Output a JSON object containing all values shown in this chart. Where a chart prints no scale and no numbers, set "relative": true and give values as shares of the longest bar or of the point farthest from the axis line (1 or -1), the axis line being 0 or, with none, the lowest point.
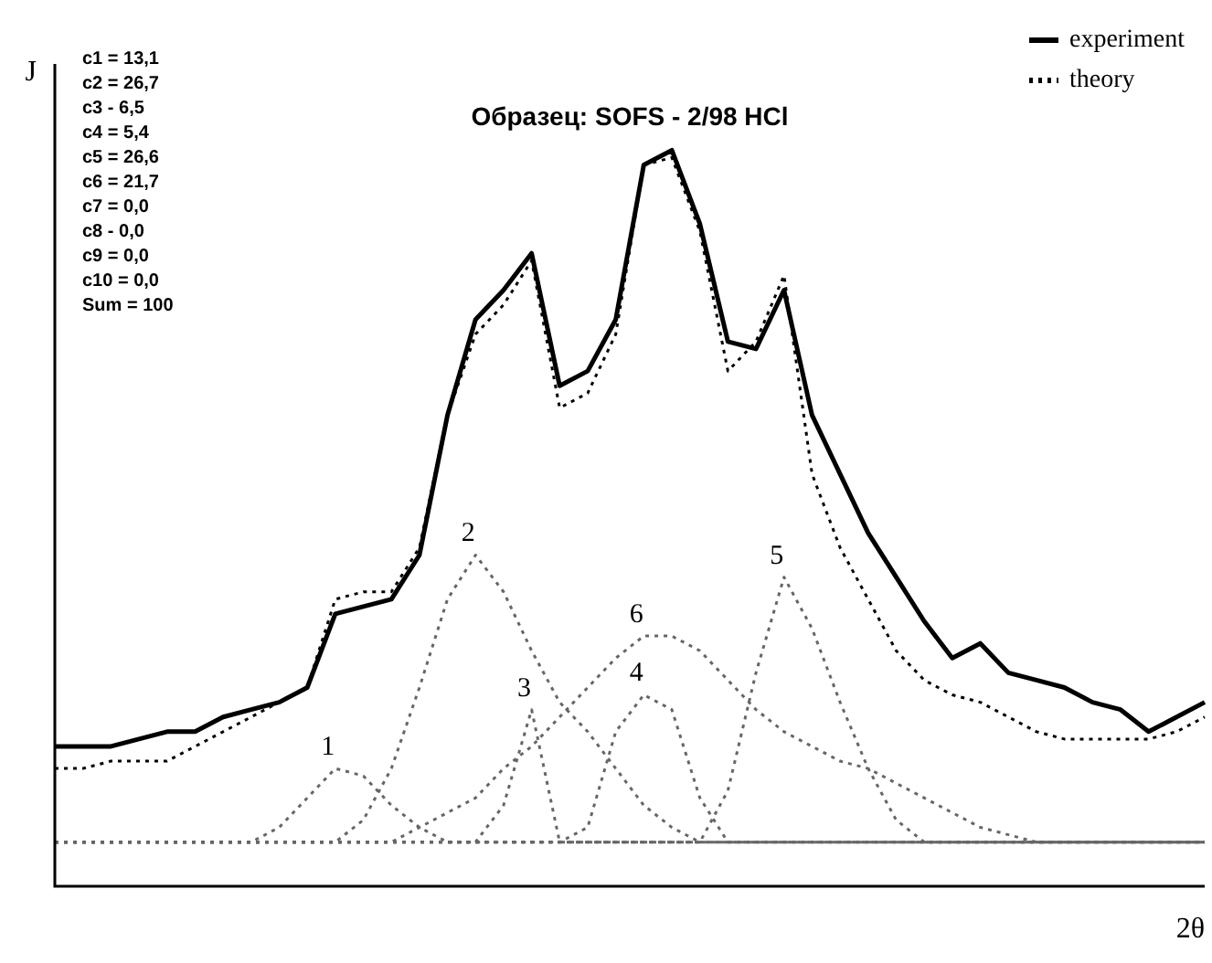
{
  "chart_data": {
    "type": "line",
    "title": "Образец: SOFS - 2/98 HCl",
    "xlabel": "2θ",
    "ylabel": "J",
    "relative": true,
    "grid": false,
    "legend": "top right",
    "marker": "none",
    "annotations": [
      "c1 = 13,1",
      "c2 = 26,7",
      "c3 - 6,5",
      "c4 = 5,4",
      "c5 = 26,6",
      "c6 = 21,7",
      "c7 = 0,0",
      "c8 - 0,0",
      "c9 = 0,0",
      "c10 = 0,0",
      "Sum = 100"
    ],
    "categories": [
      null,
      null,
      null,
      null,
      null,
      null,
      null,
      null,
      null,
      null,
      null,
      null,
      null,
      null,
      null,
      null,
      null,
      null,
      null,
      null,
      null,
      null,
      null,
      null,
      null,
      null,
      null,
      null,
      null,
      null,
      null,
      null,
      null,
      null,
      null,
      null,
      null,
      null,
      null,
      null,
      null,
      null
    ],
    "series": [
      {
        "name": "experiment",
        "color": "#000000",
        "line_style": "solid",
        "values": [
          0.19,
          0.19,
          0.19,
          0.2,
          0.21,
          0.21,
          0.23,
          0.24,
          0.25,
          0.27,
          0.37,
          0.38,
          0.39,
          0.45,
          0.64,
          0.77,
          0.81,
          0.86,
          0.68,
          0.7,
          0.77,
          0.98,
          1.0,
          0.9,
          0.74,
          0.73,
          0.81,
          0.64,
          0.56,
          0.48,
          0.42,
          0.36,
          0.31,
          0.33,
          0.29,
          0.28,
          0.27,
          0.25,
          0.24,
          0.21,
          0.23,
          0.25
        ]
      },
      {
        "name": "theory",
        "color": "#000000",
        "line_style": "dotted",
        "values": [
          0.16,
          0.16,
          0.17,
          0.17,
          0.17,
          0.19,
          0.21,
          0.23,
          0.25,
          0.27,
          0.39,
          0.4,
          0.4,
          0.46,
          0.64,
          0.75,
          0.79,
          0.85,
          0.65,
          0.67,
          0.75,
          0.98,
          0.99,
          0.89,
          0.7,
          0.74,
          0.83,
          0.56,
          0.46,
          0.39,
          0.32,
          0.28,
          0.26,
          0.25,
          0.23,
          0.21,
          0.2,
          0.2,
          0.2,
          0.2,
          0.21,
          0.23
        ]
      },
      {
        "name": "1",
        "color": "#666666",
        "line_style": "dotted",
        "values": [
          0.06,
          0.06,
          0.06,
          0.06,
          0.06,
          0.06,
          0.06,
          0.06,
          0.08,
          0.12,
          0.16,
          0.15,
          0.11,
          0.08,
          0.06,
          0.06,
          0.06,
          0.06,
          0.06,
          0.06,
          0.06,
          0.06,
          0.06,
          0.06,
          0.06,
          0.06,
          0.06,
          0.06,
          0.06,
          0.06,
          0.06,
          0.06,
          0.06,
          0.06,
          0.06,
          0.06,
          0.06,
          0.06,
          0.06,
          0.06,
          0.06,
          0.06
        ]
      },
      {
        "name": "2",
        "color": "#666666",
        "line_style": "dotted",
        "values": [
          0.06,
          0.06,
          0.06,
          0.06,
          0.06,
          0.06,
          0.06,
          0.06,
          0.06,
          0.06,
          0.06,
          0.09,
          0.16,
          0.27,
          0.39,
          0.45,
          0.4,
          0.32,
          0.25,
          0.21,
          0.16,
          0.11,
          0.08,
          0.06,
          0.06,
          0.06,
          0.06,
          0.06,
          0.06,
          0.06,
          0.06,
          0.06,
          0.06,
          0.06,
          0.06,
          0.06,
          0.06,
          0.06,
          0.06,
          0.06,
          0.06,
          0.06
        ]
      },
      {
        "name": "3",
        "color": "#666666",
        "line_style": "dotted",
        "values": [
          0.06,
          0.06,
          0.06,
          0.06,
          0.06,
          0.06,
          0.06,
          0.06,
          0.06,
          0.06,
          0.06,
          0.06,
          0.06,
          0.06,
          0.06,
          0.06,
          0.11,
          0.24,
          0.06,
          0.06,
          0.06,
          0.06,
          0.06,
          0.06,
          0.06,
          0.06,
          0.06,
          0.06,
          0.06,
          0.06,
          0.06,
          0.06,
          0.06,
          0.06,
          0.06,
          0.06,
          0.06,
          0.06,
          0.06,
          0.06,
          0.06,
          0.06
        ]
      },
      {
        "name": "4",
        "color": "#666666",
        "line_style": "dotted",
        "values": [
          0.06,
          0.06,
          0.06,
          0.06,
          0.06,
          0.06,
          0.06,
          0.06,
          0.06,
          0.06,
          0.06,
          0.06,
          0.06,
          0.06,
          0.06,
          0.06,
          0.06,
          0.06,
          0.06,
          0.08,
          0.21,
          0.26,
          0.24,
          0.12,
          0.06,
          0.06,
          0.06,
          0.06,
          0.06,
          0.06,
          0.06,
          0.06,
          0.06,
          0.06,
          0.06,
          0.06,
          0.06,
          0.06,
          0.06,
          0.06,
          0.06,
          0.06
        ]
      },
      {
        "name": "5",
        "color": "#666666",
        "line_style": "dotted",
        "values": [
          0.06,
          0.06,
          0.06,
          0.06,
          0.06,
          0.06,
          0.06,
          0.06,
          0.06,
          0.06,
          0.06,
          0.06,
          0.06,
          0.06,
          0.06,
          0.06,
          0.06,
          0.06,
          0.06,
          0.06,
          0.06,
          0.06,
          0.06,
          0.06,
          0.13,
          0.29,
          0.42,
          0.35,
          0.25,
          0.16,
          0.09,
          0.06,
          0.06,
          0.06,
          0.06,
          0.06,
          0.06,
          0.06,
          0.06,
          0.06,
          0.06,
          0.06
        ]
      },
      {
        "name": "6",
        "color": "#666666",
        "line_style": "dotted",
        "values": [
          0.06,
          0.06,
          0.06,
          0.06,
          0.06,
          0.06,
          0.06,
          0.06,
          0.06,
          0.06,
          0.06,
          0.06,
          0.06,
          0.08,
          0.1,
          0.12,
          0.16,
          0.19,
          0.23,
          0.27,
          0.31,
          0.34,
          0.34,
          0.32,
          0.28,
          0.24,
          0.21,
          0.19,
          0.17,
          0.16,
          0.14,
          0.12,
          0.1,
          0.08,
          0.07,
          0.06,
          0.06,
          0.06,
          0.06,
          0.06,
          0.06,
          0.06
        ]
      }
    ]
  }
}
